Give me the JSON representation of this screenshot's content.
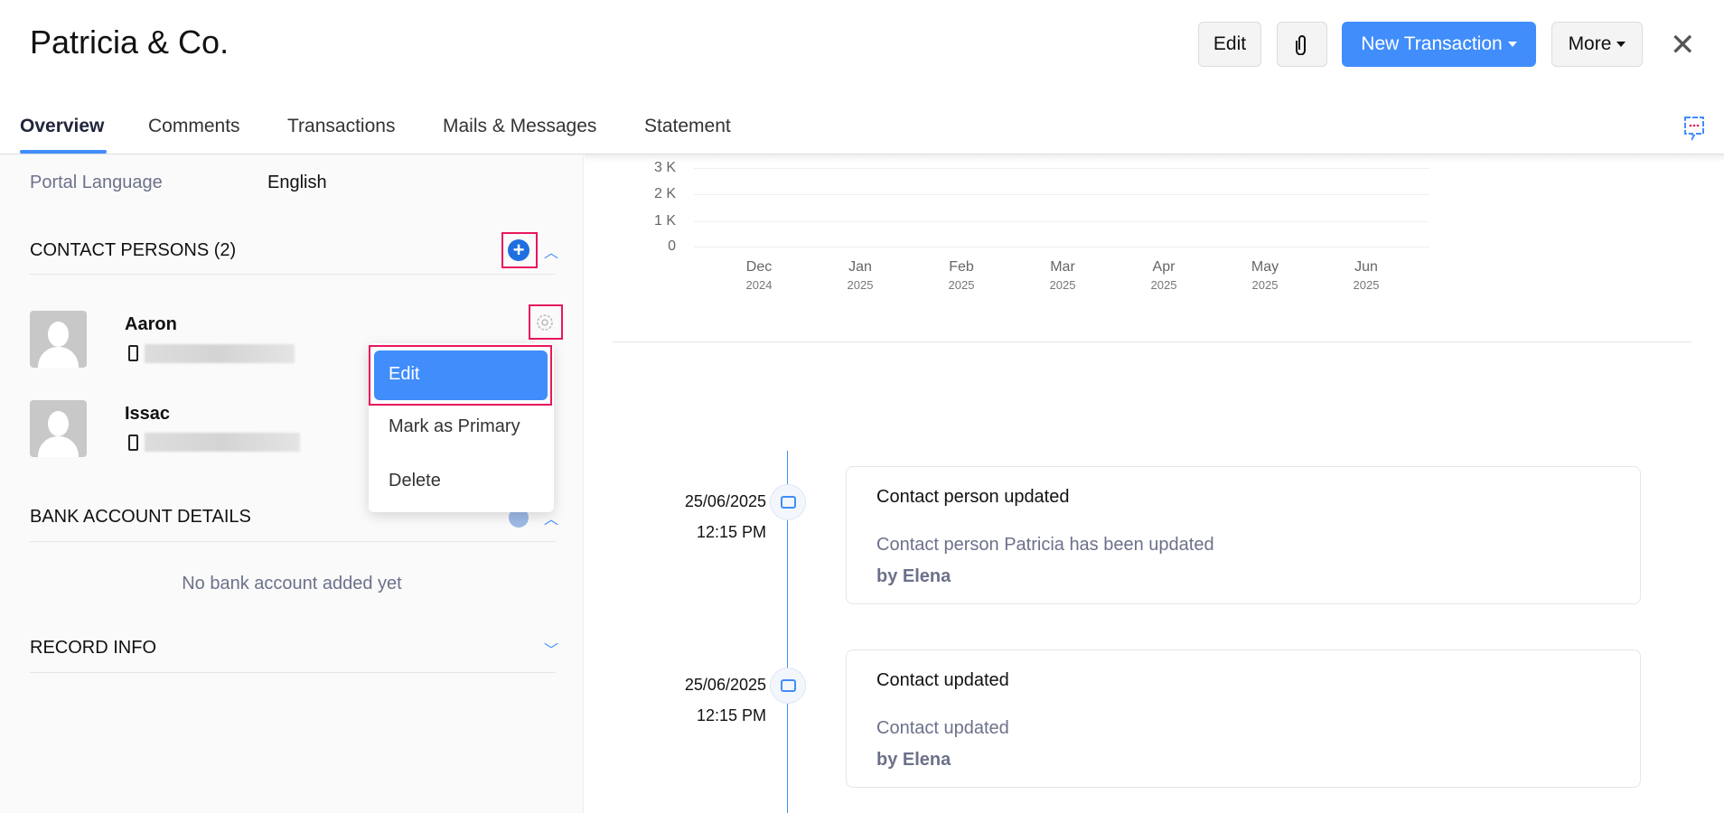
{
  "header": {
    "title": "Patricia & Co.",
    "edit_label": "Edit",
    "attach_icon": "paperclip-icon",
    "new_transaction_label": "New Transaction",
    "more_label": "More",
    "close_icon": "close-icon"
  },
  "tabs": [
    {
      "label": "Overview",
      "active": true
    },
    {
      "label": "Comments"
    },
    {
      "label": "Transactions"
    },
    {
      "label": "Mails & Messages"
    },
    {
      "label": "Statement"
    }
  ],
  "left": {
    "portal_language_label": "Portal Language",
    "portal_language_value": "English",
    "contact_persons_title": "CONTACT PERSONS (2)",
    "contacts": [
      {
        "name": "Aaron"
      },
      {
        "name": "Issac"
      }
    ],
    "menu": {
      "items": [
        "Edit",
        "Mark as Primary",
        "Delete"
      ],
      "highlighted": "Edit"
    },
    "bank_title": "BANK ACCOUNT DETAILS",
    "bank_empty": "No bank account added yet",
    "record_info_title": "RECORD INFO"
  },
  "chart_data": {
    "type": "line",
    "categories": [
      "Dec 2024",
      "Jan 2025",
      "Feb 2025",
      "Mar 2025",
      "Apr 2025",
      "May 2025",
      "Jun 2025"
    ],
    "month_labels": [
      "Dec",
      "Jan",
      "Feb",
      "Mar",
      "Apr",
      "May",
      "Jun"
    ],
    "year_labels": [
      "2024",
      "2025",
      "2025",
      "2025",
      "2025",
      "2025",
      "2025"
    ],
    "y_ticks": [
      "3 K",
      "2 K",
      "1 K",
      "0"
    ],
    "ylim": [
      0,
      3000
    ],
    "grid": true,
    "series": []
  },
  "timeline": [
    {
      "date": "25/06/2025",
      "time": "12:15 PM",
      "title": "Contact person updated",
      "description": "Contact person Patricia has been updated",
      "by": "by Elena"
    },
    {
      "date": "25/06/2025",
      "time": "12:15 PM",
      "title": "Contact updated",
      "description": "Contact updated",
      "by": "by Elena"
    }
  ],
  "colors": {
    "accent": "#408dfb",
    "highlight": "#e8175d"
  }
}
